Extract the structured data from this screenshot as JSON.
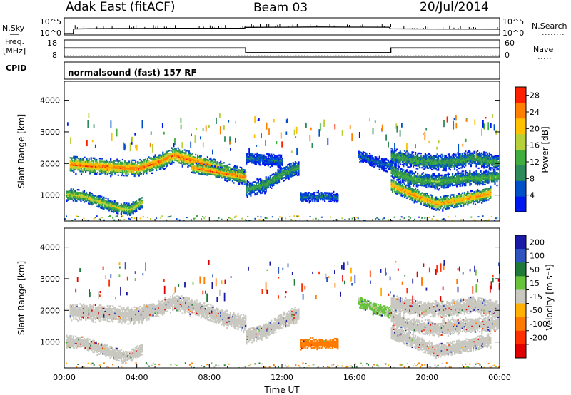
{
  "header": {
    "station": "Adak East (fitACF)",
    "beam": "Beam 03",
    "date": "20/Jul/2014"
  },
  "strip_labels": {
    "nsky": "N.Sky",
    "nsearch": "N.Search",
    "freq": "Freq.",
    "freq_unit": "[MHz]",
    "nave": "Nave",
    "cpid": "CPID",
    "cpid_value": "normalsound (fast) 157 RF"
  },
  "colors": {
    "background": "#ffffff",
    "axis": "#000000",
    "power_scale": [
      "#0018f0",
      "#0050c8",
      "#2d8a5a",
      "#3fae3f",
      "#b6d03a",
      "#ffc000",
      "#ff8000",
      "#ff2000"
    ],
    "velocity_scale": [
      "#1a1aa6",
      "#2f54c0",
      "#1f7a3a",
      "#66c33a",
      "#c8c8c0",
      "#ffb000",
      "#ff7a00",
      "#ff3000",
      "#e00000"
    ]
  },
  "chart_data": [
    {
      "type": "line",
      "panel": "noise",
      "x_unit": "hours UT",
      "y_ticks_left": [
        "10^5",
        "10^0"
      ],
      "y_ticks_right": [
        "10^5",
        "10^0"
      ],
      "series": [
        {
          "name": "N.Sky",
          "x": [
            0,
            0.5,
            0.51,
            2,
            4,
            6,
            8,
            9.9,
            10,
            12,
            14,
            16,
            17.9,
            18,
            20,
            22,
            24
          ],
          "y": [
            1,
            1,
            40,
            55,
            60,
            65,
            70,
            72,
            150,
            170,
            200,
            175,
            165,
            45,
            40,
            38,
            36
          ]
        }
      ],
      "right_label": "N.Search"
    },
    {
      "type": "line",
      "panel": "frequency",
      "x_unit": "hours UT",
      "ylim": [
        8,
        18
      ],
      "y_ticks_left": [
        "18",
        "8"
      ],
      "y_ticks_right": [
        "60",
        "0"
      ],
      "series": [
        {
          "name": "Freq.",
          "x": [
            0,
            10,
            10,
            18,
            18,
            24
          ],
          "y": [
            13.3,
            13.3,
            10.3,
            10.3,
            13.3,
            13.3
          ]
        },
        {
          "name": "Nave",
          "x": [
            0,
            24
          ],
          "y": [
            2,
            2
          ]
        }
      ]
    },
    {
      "type": "heatmap",
      "panel": "power",
      "xlabel": "Time UT",
      "ylabel": "Slant Range [km]",
      "xlim": [
        0,
        24
      ],
      "ylim": [
        180,
        4600
      ],
      "x_ticks": [
        "00:00",
        "04:00",
        "08:00",
        "12:00",
        "16:00",
        "20:00",
        "00:00"
      ],
      "y_ticks": [
        1000,
        2000,
        3000,
        4000
      ],
      "colorbar": {
        "label": "Power [dB]",
        "ticks": [
          4,
          8,
          12,
          16,
          20,
          24,
          28
        ],
        "range": [
          0,
          30
        ]
      },
      "echo_bands": [
        {
          "x": [
            0.1,
            1.0,
            2.0,
            3.0,
            3.6,
            4.3
          ],
          "y": [
            1000,
            950,
            750,
            560,
            520,
            780
          ],
          "width": 170,
          "peak": 18
        },
        {
          "x": [
            0.3,
            2.0,
            4.0,
            5.3,
            6.0,
            7.5,
            9.0,
            10.0
          ],
          "y": [
            1950,
            1880,
            1820,
            2050,
            2250,
            2000,
            1700,
            1550
          ],
          "width": 220,
          "peak": 26
        },
        {
          "x": [
            7.0,
            8.0,
            9.0,
            9.9
          ],
          "y": [
            1850,
            1750,
            1650,
            1550
          ],
          "width": 150,
          "peak": 26
        },
        {
          "x": [
            10.0,
            11.0,
            12.0,
            12.9
          ],
          "y": [
            1150,
            1300,
            1650,
            1850
          ],
          "width": 210,
          "peak": 12
        },
        {
          "x": [
            10.0,
            11.0,
            12.0
          ],
          "y": [
            2150,
            2100,
            2050
          ],
          "width": 170,
          "peak": 7
        },
        {
          "x": [
            13.0,
            14.0,
            15.1
          ],
          "y": [
            920,
            930,
            900
          ],
          "width": 140,
          "peak": 8
        },
        {
          "x": [
            16.2,
            17.0,
            18.0
          ],
          "y": [
            2250,
            2050,
            1900
          ],
          "width": 160,
          "peak": 7
        },
        {
          "x": [
            18.0,
            19.5,
            21.0,
            22.5,
            23.9
          ],
          "y": [
            2200,
            2050,
            2000,
            2150,
            2000
          ],
          "width": 220,
          "peak": 12
        },
        {
          "x": [
            18.0,
            19.0,
            20.5,
            22.0,
            23.9
          ],
          "y": [
            1750,
            1500,
            1400,
            1500,
            1550
          ],
          "width": 200,
          "peak": 14
        },
        {
          "x": [
            18.0,
            19.0,
            20.5,
            22.0,
            23.5
          ],
          "y": [
            1300,
            1050,
            700,
            850,
            1050
          ],
          "width": 190,
          "peak": 24
        }
      ]
    },
    {
      "type": "heatmap",
      "panel": "velocity",
      "xlabel": "Time UT",
      "ylabel": "Slant Range [km]",
      "xlim": [
        0,
        24
      ],
      "ylim": [
        180,
        4600
      ],
      "x_ticks": [
        "00:00",
        "04:00",
        "08:00",
        "12:00",
        "16:00",
        "20:00",
        "00:00"
      ],
      "y_ticks": [
        1000,
        2000,
        3000,
        4000
      ],
      "colorbar": {
        "label": "Velocity [m s⁻¹]",
        "ticks": [
          200,
          100,
          50,
          15,
          -15,
          -50,
          -100,
          -200
        ],
        "range": [
          -250,
          250
        ]
      },
      "echo_bands": [
        {
          "x": [
            0.1,
            1.0,
            2.0,
            3.0,
            3.6,
            4.3
          ],
          "y": [
            1000,
            950,
            750,
            560,
            520,
            780
          ],
          "width": 170,
          "value": 0
        },
        {
          "x": [
            0.3,
            2.0,
            4.0,
            5.3,
            6.0,
            7.5,
            9.0,
            10.0
          ],
          "y": [
            1950,
            1880,
            1820,
            2050,
            2250,
            2000,
            1700,
            1550
          ],
          "width": 220,
          "value": 0
        },
        {
          "x": [
            10.0,
            11.0,
            12.0,
            12.9
          ],
          "y": [
            1150,
            1300,
            1650,
            1850
          ],
          "width": 210,
          "value": 0
        },
        {
          "x": [
            13.0,
            14.0,
            15.1
          ],
          "y": [
            920,
            930,
            900
          ],
          "width": 140,
          "value": -60
        },
        {
          "x": [
            16.2,
            17.0,
            18.0
          ],
          "y": [
            2250,
            2050,
            1900
          ],
          "width": 160,
          "value": 20
        },
        {
          "x": [
            18.0,
            19.5,
            21.0,
            22.5,
            23.9
          ],
          "y": [
            2200,
            2050,
            2000,
            2150,
            2000
          ],
          "width": 220,
          "value": 0
        },
        {
          "x": [
            18.0,
            19.0,
            20.5,
            22.0,
            23.9
          ],
          "y": [
            1750,
            1500,
            1400,
            1500,
            1550
          ],
          "width": 200,
          "value": 0
        },
        {
          "x": [
            18.0,
            19.0,
            20.5,
            22.0,
            23.5
          ],
          "y": [
            1300,
            1050,
            700,
            850,
            1050
          ],
          "width": 190,
          "value": 0
        }
      ]
    }
  ]
}
